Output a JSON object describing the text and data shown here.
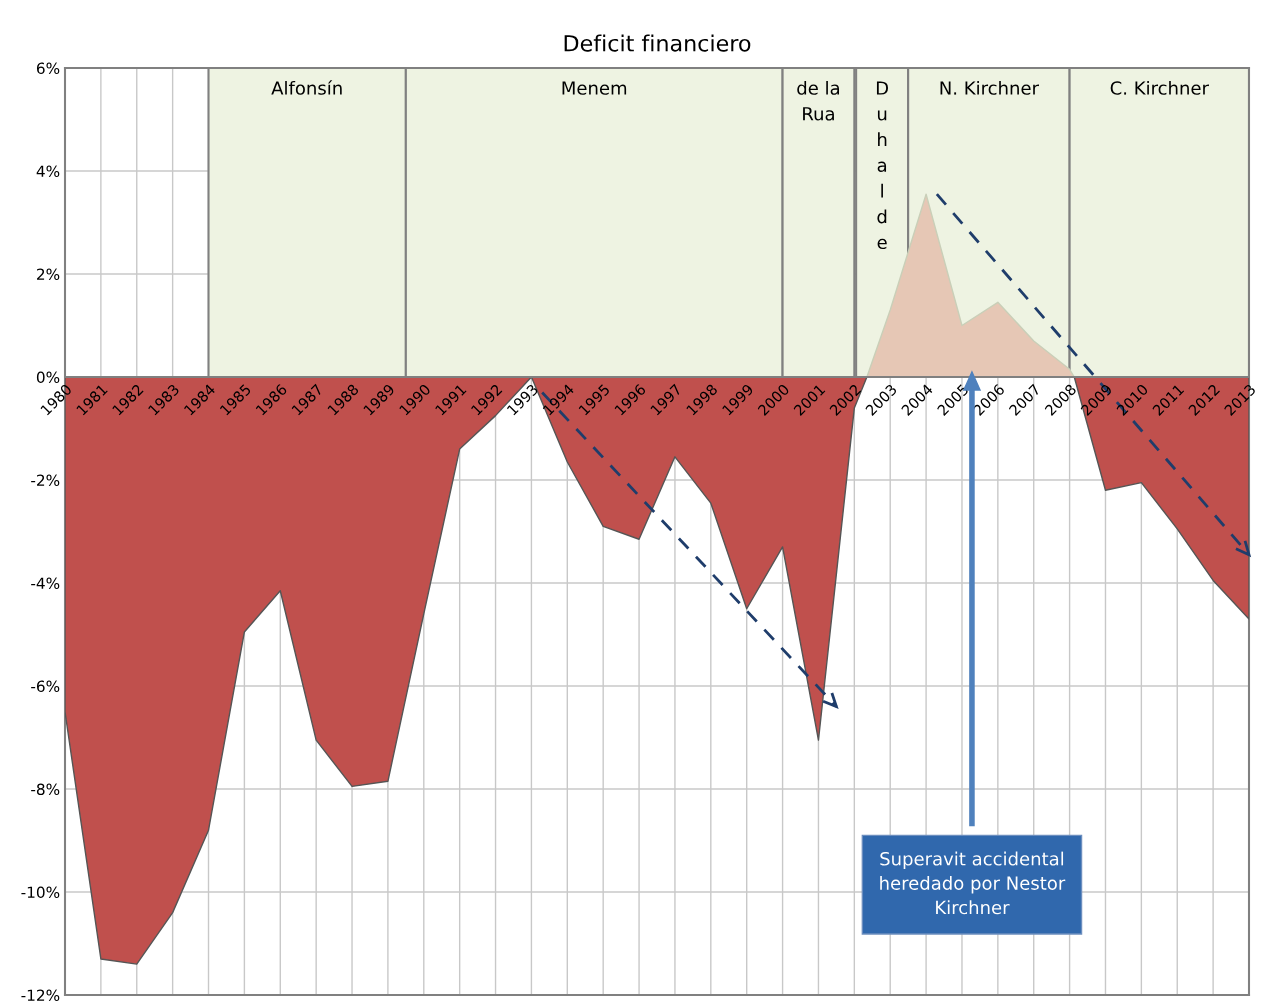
{
  "chart_data": {
    "type": "area",
    "title": "Deficit financiero",
    "xlim": [
      1980,
      2013
    ],
    "xticks": [
      1980,
      1981,
      1982,
      1983,
      1984,
      1985,
      1986,
      1987,
      1988,
      1989,
      1990,
      1991,
      1992,
      1993,
      1994,
      1995,
      1996,
      1997,
      1998,
      1999,
      2000,
      2001,
      2002,
      2003,
      2004,
      2005,
      2006,
      2007,
      2008,
      2009,
      2010,
      2011,
      2012,
      2013
    ],
    "ylim": [
      -12,
      6
    ],
    "yticks": [
      {
        "value": -12,
        "label": "-12%"
      },
      {
        "value": -10,
        "label": "-10%"
      },
      {
        "value": -8,
        "label": "-8%"
      },
      {
        "value": -6,
        "label": "-6%"
      },
      {
        "value": -4,
        "label": "-4%"
      },
      {
        "value": -2,
        "label": "-2%"
      },
      {
        "value": 0,
        "label": "0%"
      },
      {
        "value": 2,
        "label": "2%"
      },
      {
        "value": 4,
        "label": "4%"
      },
      {
        "value": 6,
        "label": "6%"
      }
    ],
    "grid": true,
    "series": [
      {
        "color": "#c0504d",
        "x": [
          1980,
          1981,
          1982,
          1983,
          1984,
          1985,
          1986,
          1987,
          1988,
          1989,
          1990,
          1991,
          1992,
          1993,
          1994,
          1995,
          1996,
          1997,
          1998,
          1999,
          2000,
          2001,
          2002,
          2002.35,
          null,
          2008.13,
          2009,
          2010,
          2011,
          2012,
          2013
        ],
        "values": [
          -6.5,
          -11.3,
          -11.4,
          -10.4,
          -8.8,
          -4.95,
          -4.15,
          -7.05,
          -7.95,
          -7.85,
          -4.6,
          -1.4,
          -0.75,
          0,
          -1.65,
          -2.9,
          -3.15,
          -1.55,
          -2.45,
          -4.5,
          -3.3,
          -7.05,
          -0.6,
          0,
          null,
          0,
          -2.2,
          -2.05,
          -2.95,
          -3.95,
          -4.7
        ]
      },
      {
        "color": "#e6c7b5",
        "x": [
          2002.35,
          2003,
          2004,
          2005,
          2006,
          2007,
          2008,
          2008.13
        ],
        "values": [
          0,
          1.3,
          3.55,
          1.0,
          1.45,
          0.7,
          0.15,
          0
        ]
      },
      {
        "type": "line",
        "color": "#1f3d6b",
        "line_style": "dashed",
        "x": [
          1993.3,
          2001.5
        ],
        "values": [
          -0.3,
          -6.4
        ]
      },
      {
        "type": "line",
        "color": "#1f3d6b",
        "line_style": "dashed",
        "x": [
          2004.3,
          2013
        ],
        "values": [
          3.55,
          -3.45
        ]
      }
    ],
    "bands": [
      {
        "axis": "x",
        "from": 1984,
        "to": 1989.5,
        "label": "Alfonsín",
        "color": "#eef3e2"
      },
      {
        "axis": "x",
        "from": 1989.5,
        "to": 2000,
        "label": "Menem",
        "color": "#eef3e2"
      },
      {
        "axis": "x",
        "from": 2000,
        "to": 2002,
        "label": "de la\nRua",
        "color": "#eef3e2"
      },
      {
        "axis": "x",
        "from": 2002.05,
        "to": 2003.5,
        "label": "D\nu\nh\na\nl\nd\ne",
        "color": "#eef3e2"
      },
      {
        "axis": "x",
        "from": 2003.5,
        "to": 2008,
        "label": "N. Kirchner",
        "color": "#eef3e2"
      },
      {
        "axis": "x",
        "from": 2008,
        "to": 2013,
        "label": "C. Kirchner",
        "color": "#eef3e2"
      }
    ],
    "annotations": [
      "Superavit accidental\nheredado por Nestor\nKirchner"
    ]
  }
}
